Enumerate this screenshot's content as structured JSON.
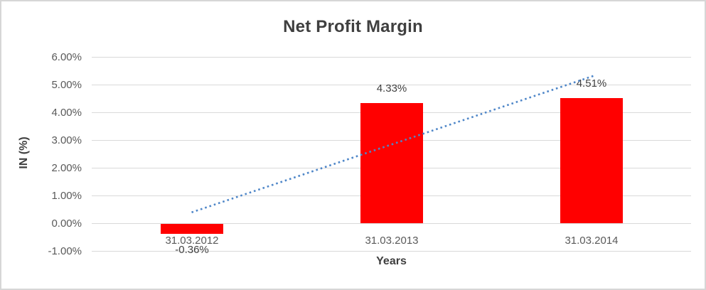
{
  "chart_data": {
    "type": "bar",
    "title": "Net Profit Margin",
    "xlabel": "Years",
    "ylabel": "IN (%)",
    "categories": [
      "31.03.2012",
      "31.03.2013",
      "31.03.2014"
    ],
    "values": [
      -0.36,
      4.33,
      4.51
    ],
    "data_labels": [
      "-0.36%",
      "4.33%",
      "4.51%"
    ],
    "y_ticks": [
      {
        "value": 6,
        "label": "6.00%"
      },
      {
        "value": 5,
        "label": "5.00%"
      },
      {
        "value": 4,
        "label": "4.00%"
      },
      {
        "value": 3,
        "label": "3.00%"
      },
      {
        "value": 2,
        "label": "2.00%"
      },
      {
        "value": 1,
        "label": "1.00%"
      },
      {
        "value": 0,
        "label": "0.00%"
      },
      {
        "value": -1,
        "label": "-1.00%"
      }
    ],
    "ylim": [
      -1,
      6
    ],
    "bar_color": "#FF0000",
    "gridline_color": "#d9d9d9",
    "grid": true,
    "legend": "none",
    "trendline": {
      "type": "linear",
      "style": "dotted",
      "color": "#4e86c8",
      "start_value": 0.39,
      "end_value": 5.26
    }
  }
}
